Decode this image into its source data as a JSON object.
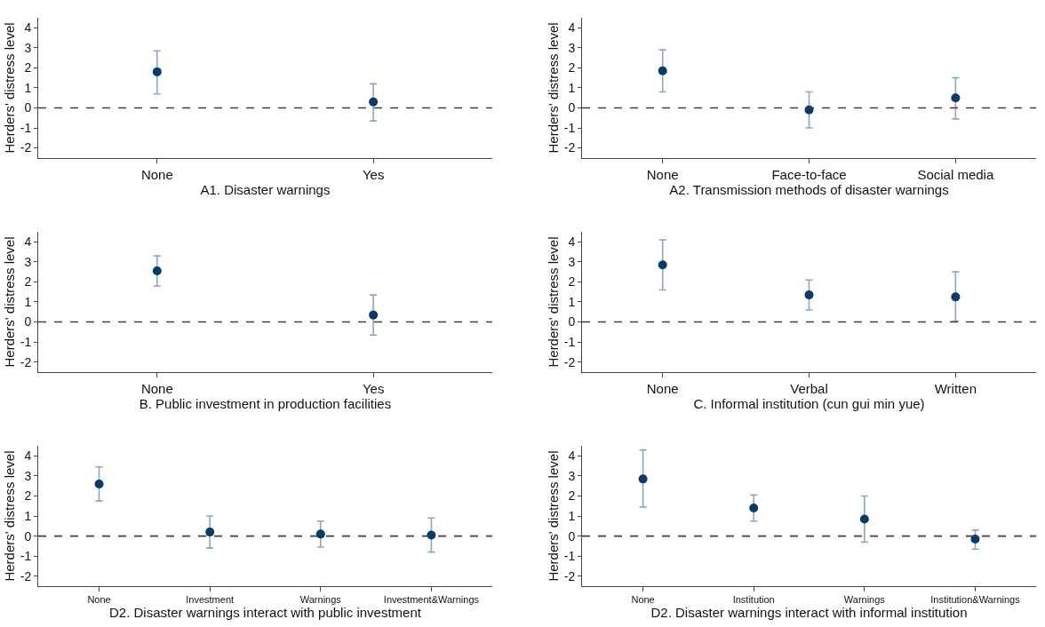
{
  "chart_data": [
    {
      "type": "scatter",
      "xlabel": "A1. Disaster warnings",
      "ylabel": "Herders' distress level",
      "categories": [
        "None",
        "Yes"
      ],
      "ylim": [
        -2.5,
        4.5
      ],
      "yticks": [
        -2,
        -1,
        0,
        1,
        2,
        3,
        4
      ],
      "marker": "circle",
      "series": [
        {
          "color": "#0b3a66",
          "values": [
            1.8,
            0.3
          ],
          "errors": [
            [
              0.7,
              2.85
            ],
            [
              -0.65,
              1.2
            ]
          ]
        }
      ],
      "ref_lines": [
        {
          "axis": "y",
          "value": 0,
          "color": "#404040",
          "line_style": "dashed"
        }
      ]
    },
    {
      "type": "scatter",
      "xlabel": "A2. Transmission methods of disaster warnings",
      "ylabel": "Herders' distress level",
      "categories": [
        "None",
        "Face-to-face",
        "Social media"
      ],
      "ylim": [
        -2.5,
        4.5
      ],
      "yticks": [
        -2,
        -1,
        0,
        1,
        2,
        3,
        4
      ],
      "marker": "circle",
      "series": [
        {
          "color": "#0b3a66",
          "values": [
            1.85,
            -0.1,
            0.5
          ],
          "errors": [
            [
              0.8,
              2.9
            ],
            [
              -1.0,
              0.8
            ],
            [
              -0.55,
              1.5
            ]
          ]
        }
      ],
      "ref_lines": [
        {
          "axis": "y",
          "value": 0,
          "color": "#404040",
          "line_style": "dashed"
        }
      ]
    },
    {
      "type": "scatter",
      "xlabel": "B. Public investment in production facilities",
      "ylabel": "Herders' distress level",
      "categories": [
        "None",
        "Yes"
      ],
      "ylim": [
        -2.5,
        4.5
      ],
      "yticks": [
        -2,
        -1,
        0,
        1,
        2,
        3,
        4
      ],
      "marker": "circle",
      "series": [
        {
          "color": "#0b3a66",
          "values": [
            2.55,
            0.35
          ],
          "errors": [
            [
              1.8,
              3.3
            ],
            [
              -0.65,
              1.35
            ]
          ]
        }
      ],
      "ref_lines": [
        {
          "axis": "y",
          "value": 0,
          "color": "#404040",
          "line_style": "dashed"
        }
      ]
    },
    {
      "type": "scatter",
      "xlabel": "C. Informal institution (cun gui min yue)",
      "ylabel": "Herders' distress level",
      "categories": [
        "None",
        "Verbal",
        "Written"
      ],
      "ylim": [
        -2.5,
        4.5
      ],
      "yticks": [
        -2,
        -1,
        0,
        1,
        2,
        3,
        4
      ],
      "marker": "circle",
      "series": [
        {
          "color": "#0b3a66",
          "values": [
            2.85,
            1.35,
            1.25
          ],
          "errors": [
            [
              1.6,
              4.1
            ],
            [
              0.6,
              2.1
            ],
            [
              0.05,
              2.5
            ]
          ]
        }
      ],
      "ref_lines": [
        {
          "axis": "y",
          "value": 0,
          "color": "#404040",
          "line_style": "dashed"
        }
      ]
    },
    {
      "type": "scatter",
      "xlabel": "D2. Disaster warnings interact with public investment",
      "ylabel": "Herders' distress level",
      "categories": [
        "None",
        "Investment",
        "Warnings",
        "Investment&Warnings"
      ],
      "ylim": [
        -2.5,
        4.5
      ],
      "yticks": [
        -2,
        -1,
        0,
        1,
        2,
        3,
        4
      ],
      "marker": "circle",
      "series": [
        {
          "color": "#0b3a66",
          "values": [
            2.6,
            0.2,
            0.1,
            0.05
          ],
          "errors": [
            [
              1.75,
              3.45
            ],
            [
              -0.6,
              1.0
            ],
            [
              -0.55,
              0.75
            ],
            [
              -0.8,
              0.9
            ]
          ]
        }
      ],
      "ref_lines": [
        {
          "axis": "y",
          "value": 0,
          "color": "#404040",
          "line_style": "dashed"
        }
      ]
    },
    {
      "type": "scatter",
      "xlabel": "D2. Disaster warnings interact with informal institution",
      "ylabel": "Herders' distress level",
      "categories": [
        "None",
        "Institution",
        "Warnings",
        "Institution&Warnings"
      ],
      "ylim": [
        -2.5,
        4.5
      ],
      "yticks": [
        -2,
        -1,
        0,
        1,
        2,
        3,
        4
      ],
      "marker": "circle",
      "series": [
        {
          "color": "#0b3a66",
          "values": [
            2.85,
            1.4,
            0.85,
            -0.15
          ],
          "errors": [
            [
              1.45,
              4.3
            ],
            [
              0.75,
              2.05
            ],
            [
              -0.3,
              2.0
            ],
            [
              -0.65,
              0.3
            ]
          ]
        }
      ],
      "ref_lines": [
        {
          "axis": "y",
          "value": 0,
          "color": "#404040",
          "line_style": "dashed"
        }
      ]
    }
  ]
}
